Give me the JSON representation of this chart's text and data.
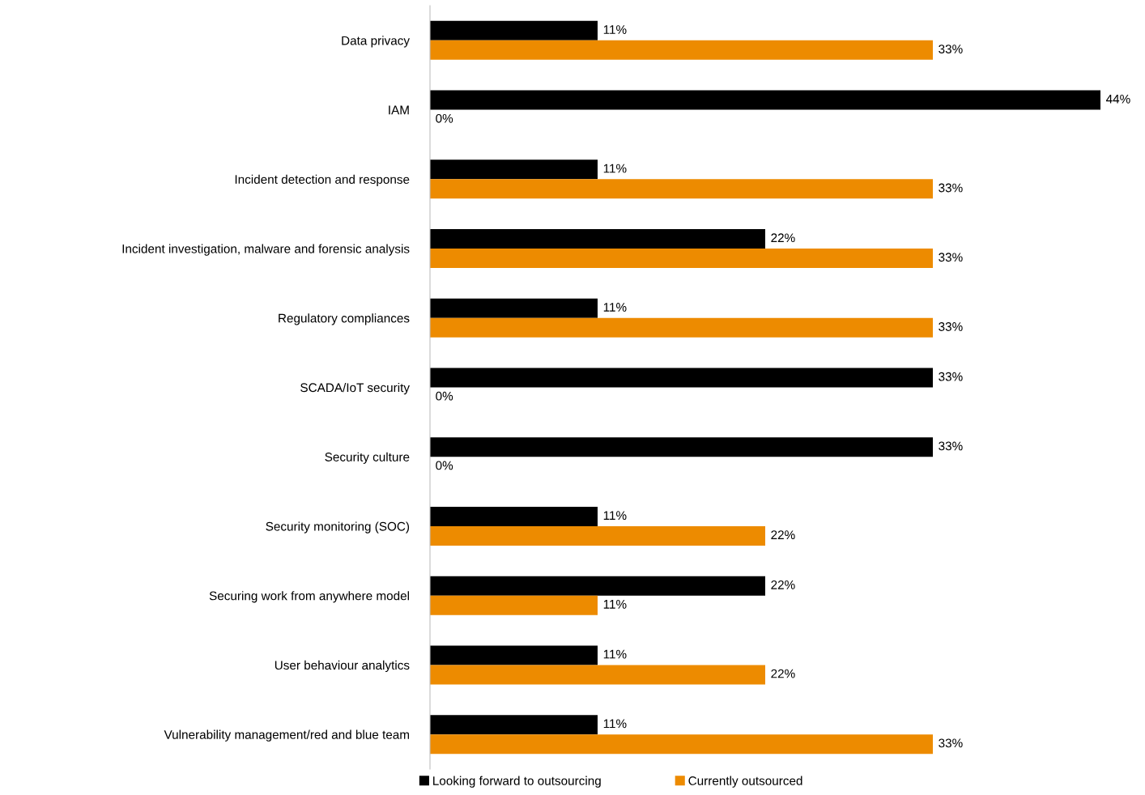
{
  "chart_data": {
    "type": "bar",
    "orientation": "horizontal",
    "categories": [
      "Data privacy",
      "IAM",
      "Incident detection and response",
      "Incident investigation, malware and forensic analysis",
      "Regulatory compliances",
      "SCADA/IoT security",
      "Security culture",
      "Security monitoring (SOC)",
      "Securing work from anywhere model",
      "User behaviour analytics",
      "Vulnerability management/red and blue team"
    ],
    "series": [
      {
        "name": "Looking forward to outsourcing",
        "color": "#000000",
        "values": [
          11,
          44,
          11,
          22,
          11,
          33,
          33,
          11,
          22,
          11,
          11
        ],
        "value_labels": [
          "11%",
          "44%",
          "11%",
          "22%",
          "11%",
          "33%",
          "33%",
          "11%",
          "22%",
          "11%",
          "11%"
        ]
      },
      {
        "name": "Currently outsourced",
        "color": "#ed8b00",
        "values": [
          33,
          0,
          33,
          33,
          33,
          0,
          0,
          22,
          11,
          22,
          33
        ],
        "value_labels": [
          "33%",
          "0%",
          "33%",
          "33%",
          "33%",
          "0%",
          "0%",
          "22%",
          "11%",
          "22%",
          "33%"
        ]
      }
    ],
    "legend": "bottom",
    "grid": false
  }
}
